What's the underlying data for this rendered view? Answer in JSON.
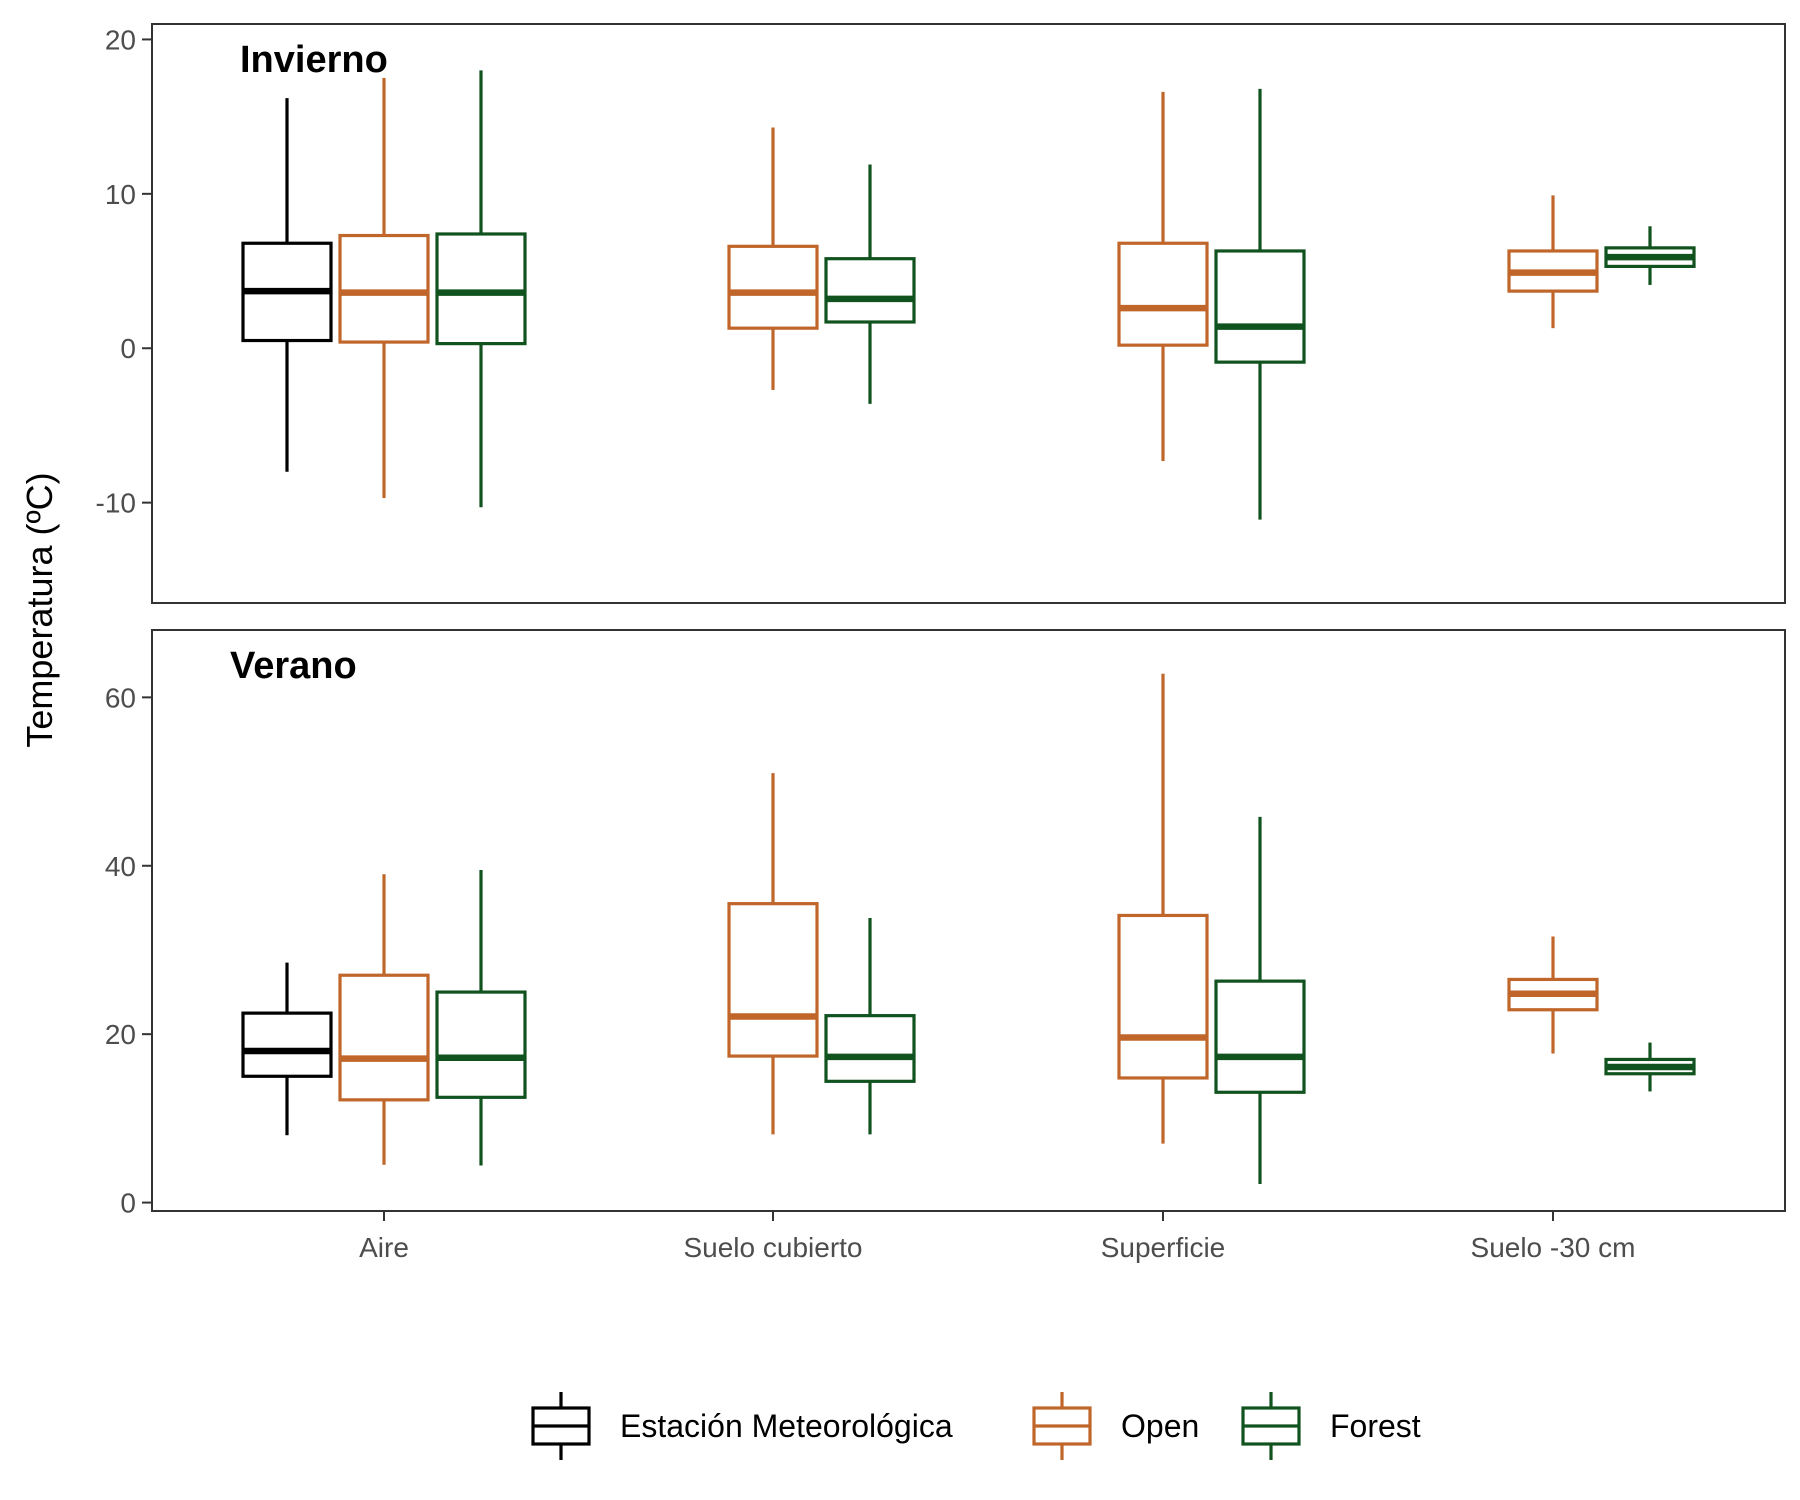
{
  "chart_data": {
    "type": "boxplot",
    "ylabel": "Temperatura (ºC)",
    "categories": [
      "Aire",
      "Suelo cubierto",
      "Superficie",
      "Suelo -30 cm"
    ],
    "groups": [
      {
        "name": "Estación Meteorológica",
        "color": "#000000"
      },
      {
        "name": "Open",
        "color": "#C0662A"
      },
      {
        "name": "Forest",
        "color": "#11531F"
      }
    ],
    "panels": [
      {
        "label": "Invierno",
        "ylim": [
          -16.5,
          21
        ],
        "yticks": [
          -10,
          0,
          10,
          20
        ],
        "boxes": [
          {
            "category": "Aire",
            "group": "Estación Meteorológica",
            "min": -8,
            "q1": 0.5,
            "median": 3.7,
            "q3": 6.8,
            "max": 16.2
          },
          {
            "category": "Aire",
            "group": "Open",
            "min": -9.7,
            "q1": 0.4,
            "median": 3.6,
            "q3": 7.3,
            "max": 17.5
          },
          {
            "category": "Aire",
            "group": "Forest",
            "min": -10.3,
            "q1": 0.3,
            "median": 3.6,
            "q3": 7.4,
            "max": 18
          },
          {
            "category": "Suelo cubierto",
            "group": "Open",
            "min": -2.7,
            "q1": 1.3,
            "median": 3.6,
            "q3": 6.6,
            "max": 14.3
          },
          {
            "category": "Suelo cubierto",
            "group": "Forest",
            "min": -3.6,
            "q1": 1.7,
            "median": 3.2,
            "q3": 5.8,
            "max": 11.9
          },
          {
            "category": "Superficie",
            "group": "Open",
            "min": -7.3,
            "q1": 0.2,
            "median": 2.6,
            "q3": 6.8,
            "max": 16.6
          },
          {
            "category": "Superficie",
            "group": "Forest",
            "min": -11.1,
            "q1": -0.9,
            "median": 1.4,
            "q3": 6.3,
            "max": 16.8
          },
          {
            "category": "Suelo -30 cm",
            "group": "Open",
            "min": 1.3,
            "q1": 3.7,
            "median": 4.9,
            "q3": 6.3,
            "max": 9.9
          },
          {
            "category": "Suelo -30 cm",
            "group": "Forest",
            "min": 4.1,
            "q1": 5.3,
            "median": 5.9,
            "q3": 6.5,
            "max": 7.9
          }
        ]
      },
      {
        "label": "Verano",
        "ylim": [
          -1,
          68
        ],
        "yticks": [
          0,
          20,
          40,
          60
        ],
        "boxes": [
          {
            "category": "Aire",
            "group": "Estación Meteorológica",
            "min": 8,
            "q1": 15,
            "median": 18,
            "q3": 22.5,
            "max": 28.5
          },
          {
            "category": "Aire",
            "group": "Open",
            "min": 4.5,
            "q1": 12.2,
            "median": 17.1,
            "q3": 27,
            "max": 39
          },
          {
            "category": "Aire",
            "group": "Forest",
            "min": 4.4,
            "q1": 12.5,
            "median": 17.2,
            "q3": 25,
            "max": 39.5
          },
          {
            "category": "Suelo cubierto",
            "group": "Open",
            "min": 8.1,
            "q1": 17.4,
            "median": 22.1,
            "q3": 35.5,
            "max": 51
          },
          {
            "category": "Suelo cubierto",
            "group": "Forest",
            "min": 8.1,
            "q1": 14.4,
            "median": 17.3,
            "q3": 22.2,
            "max": 33.8
          },
          {
            "category": "Superficie",
            "group": "Open",
            "min": 7,
            "q1": 14.8,
            "median": 19.6,
            "q3": 34.1,
            "max": 62.8
          },
          {
            "category": "Superficie",
            "group": "Forest",
            "min": 2.2,
            "q1": 13.1,
            "median": 17.3,
            "q3": 26.3,
            "max": 45.8
          },
          {
            "category": "Suelo -30 cm",
            "group": "Open",
            "min": 17.7,
            "q1": 22.9,
            "median": 24.8,
            "q3": 26.5,
            "max": 31.6
          },
          {
            "category": "Suelo -30 cm",
            "group": "Forest",
            "min": 13.2,
            "q1": 15.3,
            "median": 16.1,
            "q3": 17,
            "max": 19
          }
        ]
      }
    ],
    "legend": {
      "position": "bottom"
    }
  }
}
